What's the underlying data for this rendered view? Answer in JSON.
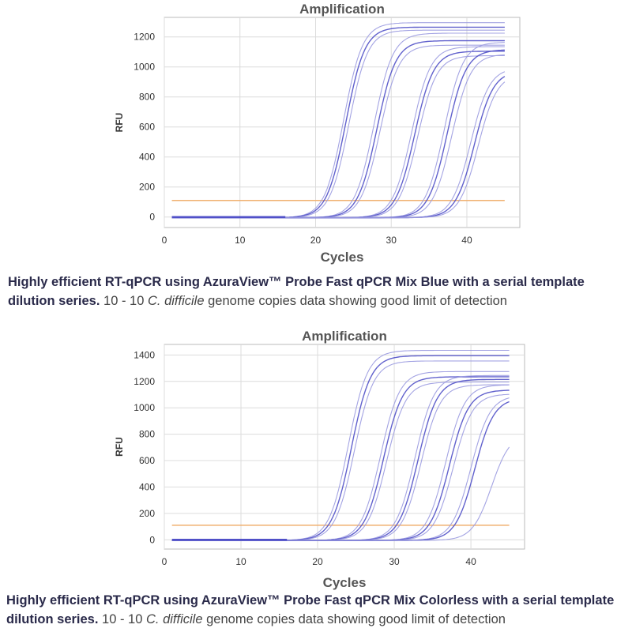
{
  "chart_data": [
    {
      "type": "line",
      "title": "Amplification",
      "xlabel": "Cycles",
      "ylabel": "RFU",
      "xlim": [
        0,
        47
      ],
      "ylim": [
        -70,
        1330
      ],
      "xticks": [
        0,
        10,
        20,
        30,
        40
      ],
      "yticks": [
        0,
        200,
        400,
        600,
        800,
        1000,
        1200
      ],
      "threshold": 110,
      "grid": true,
      "colors": {
        "curves": "#5050c8",
        "curves_light": "#9a9ae0",
        "threshold": "#f0b070"
      },
      "series": [
        {
          "ct": 21.5,
          "plateau": 1300
        },
        {
          "ct": 21.8,
          "plateau": 1270
        },
        {
          "ct": 22.2,
          "plateau": 1250
        },
        {
          "ct": 25.5,
          "plateau": 1230
        },
        {
          "ct": 25.9,
          "plateau": 1180
        },
        {
          "ct": 26.3,
          "plateau": 1150
        },
        {
          "ct": 30.5,
          "plateau": 1140
        },
        {
          "ct": 30.9,
          "plateau": 1110
        },
        {
          "ct": 31.3,
          "plateau": 1080
        },
        {
          "ct": 34.8,
          "plateau": 1170
        },
        {
          "ct": 35.2,
          "plateau": 1120
        },
        {
          "ct": 35.8,
          "plateau": 1090
        },
        {
          "ct": 38.3,
          "plateau": 1000
        },
        {
          "ct": 38.8,
          "plateau": 980
        },
        {
          "ct": 39.3,
          "plateau": 960
        }
      ]
    },
    {
      "type": "line",
      "title": "Amplification",
      "xlabel": "Cycles",
      "ylabel": "RFU",
      "xlim": [
        0,
        47
      ],
      "ylim": [
        -70,
        1480
      ],
      "xticks": [
        0,
        10,
        20,
        30,
        40
      ],
      "yticks": [
        0,
        200,
        400,
        600,
        800,
        1000,
        1200,
        1400
      ],
      "threshold": 110,
      "grid": true,
      "colors": {
        "curves": "#5050c8",
        "curves_light": "#9a9ae0",
        "threshold": "#f0b070"
      },
      "series": [
        {
          "ct": 21.8,
          "plateau": 1440
        },
        {
          "ct": 22.2,
          "plateau": 1400
        },
        {
          "ct": 22.6,
          "plateau": 1360
        },
        {
          "ct": 26.0,
          "plateau": 1280
        },
        {
          "ct": 26.4,
          "plateau": 1240
        },
        {
          "ct": 26.8,
          "plateau": 1200
        },
        {
          "ct": 30.5,
          "plateau": 1250
        },
        {
          "ct": 30.9,
          "plateau": 1220
        },
        {
          "ct": 31.3,
          "plateau": 1180
        },
        {
          "ct": 34.5,
          "plateau": 1180
        },
        {
          "ct": 35.0,
          "plateau": 1140
        },
        {
          "ct": 35.5,
          "plateau": 1110
        },
        {
          "ct": 37.8,
          "plateau": 1100
        },
        {
          "ct": 38.3,
          "plateau": 1080
        },
        {
          "ct": 40.5,
          "plateau": 820
        }
      ]
    }
  ],
  "captions": [
    {
      "bold": "Highly efficient RT-qPCR using AzuraView™ Probe Fast qPCR Mix Blue with a serial template dilution series.",
      "range": " 10 - 10 ",
      "organism": "C. difficile",
      "rest": " genome copies data showing good limit of detection"
    },
    {
      "bold": "Highly efficient RT-qPCR using AzuraView™ Probe Fast qPCR Mix Colorless with a serial template dilution series.",
      "range": " 10 - 10 ",
      "organism": "C. difficile",
      "rest": " genome copies data showing good limit of detection"
    }
  ]
}
